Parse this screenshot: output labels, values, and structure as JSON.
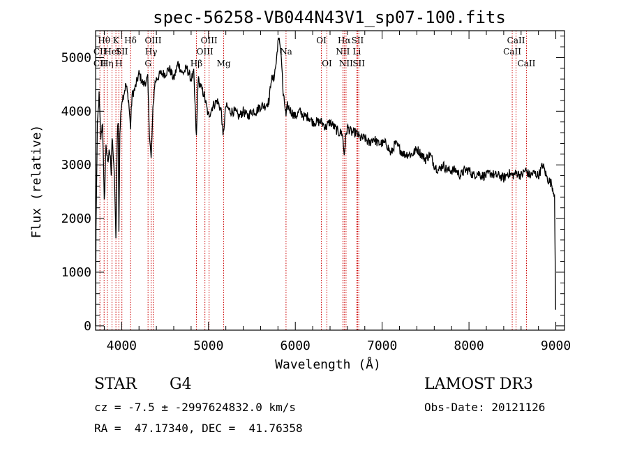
{
  "chart_data": {
    "type": "line",
    "title": "spec-56258-VB044N43V1_sp07-100.fits",
    "xlabel": "Wavelength (Å)",
    "ylabel": "Flux (relative)",
    "xlim": [
      3700,
      9100
    ],
    "ylim": [
      -80,
      5500
    ],
    "xticks": [
      4000,
      5000,
      6000,
      7000,
      8000,
      9000
    ],
    "yticks": [
      0,
      1000,
      2000,
      3000,
      4000,
      5000
    ],
    "grid": false,
    "series": [
      {
        "name": "flux",
        "x": [
          3700,
          3705,
          3720,
          3740,
          3760,
          3780,
          3800,
          3820,
          3840,
          3860,
          3870,
          3880,
          3890,
          3900,
          3920,
          3934,
          3950,
          3960,
          3968,
          3980,
          4000,
          4020,
          4050,
          4080,
          4102,
          4120,
          4150,
          4200,
          4250,
          4300,
          4320,
          4340,
          4360,
          4380,
          4400,
          4450,
          4500,
          4550,
          4600,
          4650,
          4700,
          4750,
          4800,
          4830,
          4861,
          4880,
          4900,
          4950,
          5000,
          5050,
          5100,
          5150,
          5167,
          5183,
          5200,
          5250,
          5300,
          5350,
          5400,
          5450,
          5500,
          5550,
          5600,
          5650,
          5700,
          5720,
          5750,
          5780,
          5800,
          5820,
          5840,
          5860,
          5880,
          5893,
          5910,
          5950,
          6000,
          6050,
          6100,
          6150,
          6200,
          6250,
          6300,
          6350,
          6400,
          6450,
          6500,
          6540,
          6563,
          6580,
          6600,
          6650,
          6700,
          6750,
          6800,
          6850,
          6900,
          6950,
          7000,
          7050,
          7100,
          7150,
          7200,
          7250,
          7300,
          7350,
          7400,
          7450,
          7500,
          7550,
          7600,
          7650,
          7700,
          7750,
          7800,
          7850,
          7900,
          7950,
          8000,
          8050,
          8100,
          8150,
          8200,
          8250,
          8300,
          8350,
          8400,
          8450,
          8500,
          8550,
          8600,
          8650,
          8700,
          8750,
          8800,
          8850,
          8900,
          8950,
          8985,
          8998
        ],
        "values": [
          0,
          1800,
          3700,
          4300,
          3500,
          3800,
          2300,
          3400,
          3000,
          3300,
          3200,
          2800,
          3500,
          3300,
          2600,
          1600,
          3600,
          3800,
          1800,
          3600,
          4200,
          4300,
          4500,
          4200,
          3700,
          4300,
          4400,
          4700,
          4500,
          4600,
          3600,
          3100,
          4000,
          4500,
          4600,
          4700,
          4700,
          4800,
          4600,
          4900,
          4700,
          4800,
          4600,
          4700,
          3500,
          4600,
          4500,
          4300,
          3900,
          4100,
          4200,
          4000,
          3500,
          3800,
          4100,
          4000,
          4000,
          3900,
          4000,
          3900,
          4000,
          4000,
          4100,
          4100,
          4200,
          4600,
          4600,
          4900,
          5300,
          5300,
          5000,
          4300,
          4100,
          3900,
          4100,
          4000,
          3900,
          4000,
          3900,
          3900,
          3800,
          3800,
          3800,
          3700,
          3800,
          3700,
          3600,
          3600,
          3200,
          3500,
          3700,
          3600,
          3600,
          3500,
          3500,
          3400,
          3500,
          3400,
          3400,
          3400,
          3200,
          3400,
          3300,
          3200,
          3200,
          3200,
          3300,
          3200,
          3100,
          3200,
          3000,
          2900,
          3000,
          2900,
          2900,
          2900,
          2800,
          2900,
          2900,
          2800,
          2850,
          2800,
          2800,
          2850,
          2800,
          2800,
          2750,
          2850,
          2800,
          2850,
          2800,
          2900,
          2800,
          2850,
          2800,
          3000,
          2750,
          2650,
          2450,
          300
        ]
      }
    ],
    "lines": [
      {
        "label": "Hθ",
        "x": 3798,
        "row": 1
      },
      {
        "label": "CII",
        "x": 3750,
        "row": 2
      },
      {
        "label": "Hη",
        "x": 3835,
        "row": 3
      },
      {
        "label": "CII",
        "x": 3750,
        "row": 3
      },
      {
        "label": "HeI",
        "x": 3889,
        "row": 2
      },
      {
        "label": "K",
        "x": 3934,
        "row": 1
      },
      {
        "label": "H",
        "x": 3968,
        "row": 3
      },
      {
        "label": "SII",
        "x": 4003,
        "row": 2
      },
      {
        "label": "Hδ",
        "x": 4102,
        "row": 1
      },
      {
        "label": "OIII",
        "x": 4363,
        "row": 1
      },
      {
        "label": "Hγ",
        "x": 4340,
        "row": 2
      },
      {
        "label": "G",
        "x": 4304,
        "row": 3
      },
      {
        "label": "Hβ",
        "x": 4861,
        "row": 3
      },
      {
        "label": "OIII",
        "x": 5007,
        "row": 1
      },
      {
        "label": "OIII",
        "x": 4959,
        "row": 2
      },
      {
        "label": "Mg",
        "x": 5175,
        "row": 3
      },
      {
        "label": "Na",
        "x": 5893,
        "row": 2
      },
      {
        "label": "OI",
        "x": 6300,
        "row": 1
      },
      {
        "label": "OI",
        "x": 6364,
        "row": 3
      },
      {
        "label": "Hα",
        "x": 6563,
        "row": 1
      },
      {
        "label": "NII",
        "x": 6548,
        "row": 2
      },
      {
        "label": "NII",
        "x": 6584,
        "row": 3
      },
      {
        "label": "SII",
        "x": 6717,
        "row": 1
      },
      {
        "label": "Li",
        "x": 6708,
        "row": 2
      },
      {
        "label": "SII",
        "x": 6731,
        "row": 3
      },
      {
        "label": "CaII",
        "x": 8542,
        "row": 1
      },
      {
        "label": "CaII",
        "x": 8498,
        "row": 2
      },
      {
        "label": "CaII",
        "x": 8662,
        "row": 3
      }
    ]
  },
  "info": {
    "class_label": "STAR",
    "subclass": "G4",
    "survey": "LAMOST DR3",
    "redshift": "cz = -7.5 ± -2997624832.0 km/s",
    "obs_date": "Obs-Date: 20121126",
    "coords": "RA =  47.17340, DEC =  41.76358"
  }
}
